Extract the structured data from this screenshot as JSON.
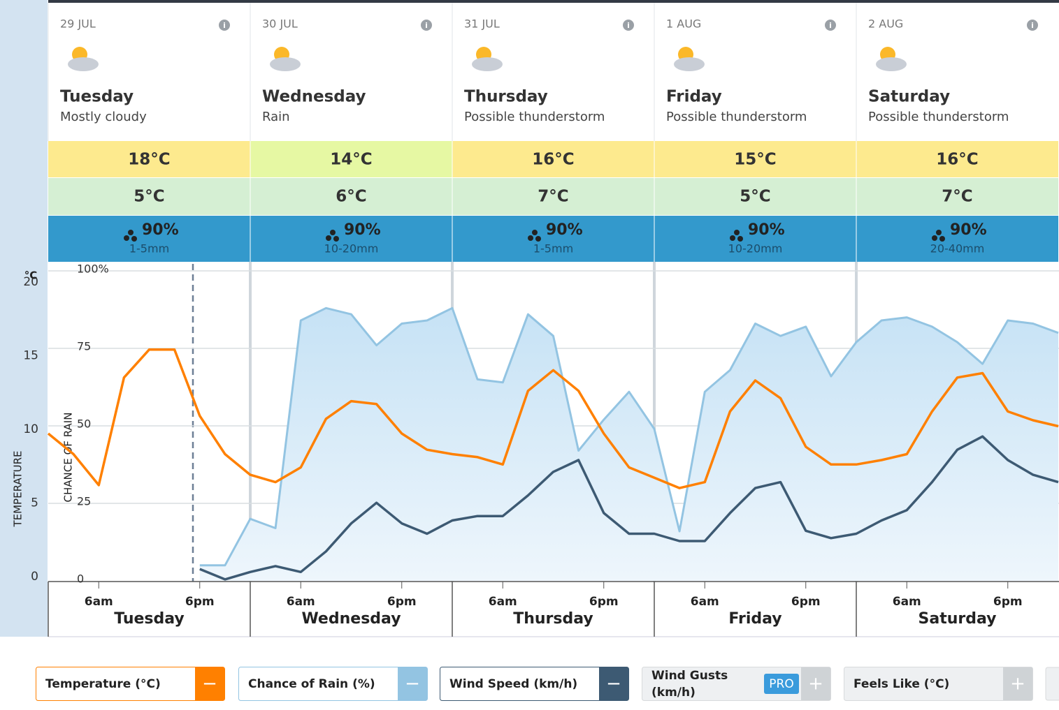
{
  "days": [
    {
      "date": "29 JUL",
      "name": "Tuesday",
      "desc": "Mostly cloudy",
      "max": "18°C",
      "min": "5°C",
      "rain": "90%",
      "amount": "1-5mm",
      "max_color": "#fdea8e"
    },
    {
      "date": "30 JUL",
      "name": "Wednesday",
      "desc": "Rain",
      "max": "14°C",
      "min": "6°C",
      "rain": "90%",
      "amount": "10-20mm",
      "max_color": "#e6f8a3"
    },
    {
      "date": "31 JUL",
      "name": "Thursday",
      "desc": "Possible thunderstorm",
      "max": "16°C",
      "min": "7°C",
      "rain": "90%",
      "amount": "1-5mm",
      "max_color": "#fdea8e"
    },
    {
      "date": "1 AUG",
      "name": "Friday",
      "desc": "Possible thunderstorm",
      "max": "15°C",
      "min": "5°C",
      "rain": "90%",
      "amount": "10-20mm",
      "max_color": "#fdea8e"
    },
    {
      "date": "2 AUG",
      "name": "Saturday",
      "desc": "Possible thunderstorm",
      "max": "16°C",
      "min": "7°C",
      "rain": "90%",
      "amount": "20-40mm",
      "max_color": "#fdea8e"
    }
  ],
  "chart_data": {
    "type": "line",
    "y_unit": "°C",
    "ylabel": "TEMPERATURE",
    "y2label": "CHANCE OF RAIN",
    "time_labels": [
      "6am",
      "6pm"
    ],
    "x": [
      0,
      3,
      6,
      9,
      12,
      15,
      18,
      21,
      24,
      27,
      30,
      33,
      36,
      39,
      42,
      45,
      48,
      51,
      54,
      57,
      60,
      63,
      66,
      69,
      72,
      75,
      78,
      81,
      84,
      87,
      90,
      93,
      96,
      99,
      102,
      105,
      108,
      111,
      114,
      117,
      120
    ],
    "xlim": [
      0,
      120
    ],
    "ylim": [
      0,
      20
    ],
    "yticks": [
      0,
      5,
      10,
      15,
      20
    ],
    "y2lim": [
      0,
      100
    ],
    "y2ticks": [
      0,
      25,
      50,
      75,
      {
        "value": 100,
        "label": "100%"
      }
    ],
    "series": [
      {
        "name": "Chance of Rain (%)",
        "color": "#93c4e2",
        "axis": "y2",
        "values": [
          null,
          null,
          null,
          null,
          null,
          null,
          5,
          5,
          20,
          17,
          84,
          88,
          86,
          76,
          83,
          84,
          88,
          65,
          64,
          86,
          79,
          42,
          52,
          61,
          49,
          16,
          61,
          68,
          83,
          79,
          82,
          66,
          77,
          84,
          85,
          82,
          77,
          70,
          84,
          83,
          80
        ]
      },
      {
        "name": "Temperature (°C)",
        "color": "#ff8000",
        "axis": "y",
        "values": [
          10,
          8.6,
          6.5,
          13.8,
          15.7,
          15.7,
          11.2,
          8.6,
          7.2,
          6.7,
          7.7,
          11,
          12.2,
          12,
          10,
          8.9,
          8.6,
          8.4,
          7.9,
          12.9,
          14.3,
          12.9,
          10,
          7.7,
          7,
          6.3,
          6.7,
          11.5,
          13.6,
          12.4,
          9.1,
          7.9,
          7.9,
          8.2,
          8.6,
          11.5,
          13.8,
          14.1,
          11.5,
          10.9,
          10.5
        ]
      },
      {
        "name": "Wind Speed (km/h)",
        "color": "#3d5a73",
        "axis": "y",
        "values": [
          null,
          null,
          null,
          null,
          null,
          null,
          0.8,
          0.1,
          0.6,
          1,
          0.6,
          2,
          3.9,
          5.3,
          3.9,
          3.2,
          4.1,
          4.4,
          4.4,
          5.8,
          7.4,
          8.2,
          4.6,
          3.2,
          3.2,
          2.7,
          2.7,
          4.6,
          6.3,
          6.7,
          3.4,
          2.9,
          3.2,
          4.1,
          4.8,
          6.7,
          8.9,
          9.8,
          8.2,
          7.2,
          6.7
        ]
      }
    ]
  },
  "legend": [
    {
      "label": "Temperature (°C)",
      "toggle": "−",
      "color": "#ff8000",
      "active": true
    },
    {
      "label": "Chance of Rain (%)",
      "toggle": "−",
      "color": "#93c4e2",
      "active": true
    },
    {
      "label": "Wind Speed (km/h)",
      "toggle": "−",
      "color": "#3d5a73",
      "active": true
    },
    {
      "label": "Wind Gusts (km/h)",
      "badge": "PRO",
      "toggle": "+",
      "color": "#cfd3d6",
      "active": false
    },
    {
      "label": "Feels Like (°C)",
      "toggle": "+",
      "color": "#cfd3d6",
      "active": false
    }
  ]
}
